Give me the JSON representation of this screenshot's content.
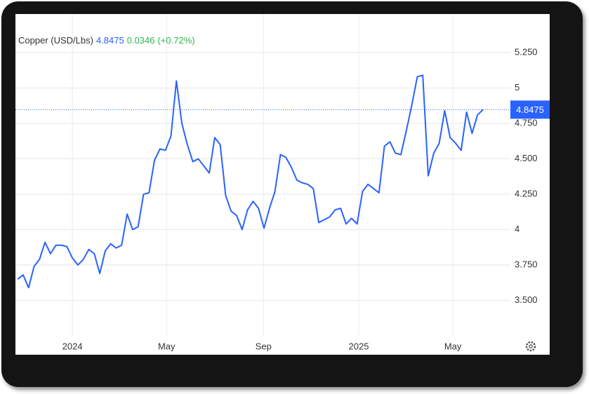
{
  "chart_data": {
    "type": "line",
    "title": "Copper (USD/Lbs)",
    "price": 4.8475,
    "change": 0.0346,
    "change_label": "(+0.72%)",
    "color": "#2962ff",
    "values": [
      3.65,
      3.68,
      3.59,
      3.74,
      3.79,
      3.91,
      3.83,
      3.89,
      3.89,
      3.88,
      3.8,
      3.75,
      3.79,
      3.86,
      3.83,
      3.69,
      3.85,
      3.9,
      3.87,
      3.89,
      4.11,
      4.0,
      4.02,
      4.25,
      4.26,
      4.49,
      4.57,
      4.56,
      4.66,
      5.05,
      4.75,
      4.6,
      4.48,
      4.5,
      4.45,
      4.4,
      4.65,
      4.6,
      4.24,
      4.13,
      4.1,
      4.0,
      4.14,
      4.2,
      4.15,
      4.01,
      4.15,
      4.27,
      4.53,
      4.51,
      4.44,
      4.35,
      4.33,
      4.32,
      4.29,
      4.05,
      4.07,
      4.09,
      4.14,
      4.15,
      4.04,
      4.08,
      4.04,
      4.27,
      4.32,
      4.29,
      4.26,
      4.59,
      4.62,
      4.54,
      4.53,
      4.7,
      4.88,
      5.08,
      5.09,
      4.38,
      4.54,
      4.61,
      4.84,
      4.65,
      4.61,
      4.56,
      4.83,
      4.68,
      4.81,
      4.8475
    ],
    "xlim": [
      -0.4,
      90
    ],
    "xticks": [
      {
        "value": 10,
        "label": "2024"
      },
      {
        "value": 27.2,
        "label": "May"
      },
      {
        "value": 44.9,
        "label": "Sep"
      },
      {
        "value": 62.3,
        "label": "2025"
      },
      {
        "value": 79.5,
        "label": "May"
      }
    ],
    "ylim": [
      3.25,
      5.5
    ],
    "yticks": [
      {
        "value": 3.5,
        "label": "3.500"
      },
      {
        "value": 3.75,
        "label": "3.750"
      },
      4,
      {
        "value": 4.25,
        "label": "4.250"
      },
      {
        "value": 4.5,
        "label": "4.500"
      },
      {
        "value": 4.75,
        "label": "4.750"
      },
      5,
      {
        "value": 5.25,
        "label": "5.250"
      }
    ],
    "grid": true
  }
}
